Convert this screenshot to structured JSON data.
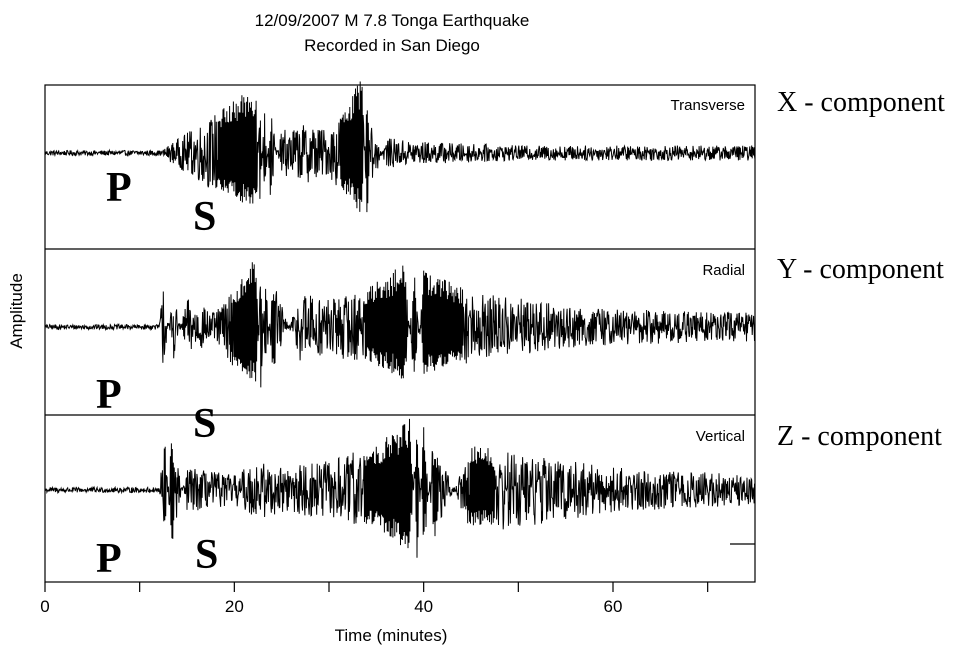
{
  "chart_data": {
    "type": "line",
    "title": "12/09/2007 M 7.8 Tonga Earthquake",
    "subtitle": "Recorded in San Diego",
    "xlabel": "Time (minutes)",
    "ylabel": "Amplitude",
    "xlim": [
      0,
      75
    ],
    "xticks": [
      0,
      10,
      20,
      30,
      40,
      50,
      60,
      70
    ],
    "xtick_labels": [
      "0",
      "",
      "20",
      "",
      "40",
      "",
      "60",
      ""
    ],
    "grid": false,
    "series": [
      {
        "name": "Transverse",
        "component": "X - component",
        "p_label": "P",
        "s_label": "S",
        "x": [
          0,
          12,
          13,
          22.3,
          22.7,
          23.2,
          23.8,
          25,
          28,
          30,
          33.5,
          34.0,
          34.5,
          35,
          36,
          40,
          50,
          60,
          75
        ],
        "y": [
          0,
          0,
          0.1,
          0.9,
          -0.8,
          0.7,
          -0.6,
          0.3,
          0.4,
          0.3,
          1.0,
          -1.0,
          0.6,
          -0.3,
          0.2,
          0.15,
          0.1,
          0.1,
          0.1
        ]
      },
      {
        "name": "Radial",
        "component": "Y - component",
        "p_label": "P",
        "s_label": "S",
        "x": [
          0,
          12,
          12.5,
          13.5,
          15,
          18,
          22.3,
          22.8,
          23.3,
          24,
          27,
          30,
          33,
          36,
          38,
          39,
          40,
          45,
          50,
          55,
          60,
          75
        ],
        "y": [
          0,
          0,
          0.6,
          -0.5,
          0.4,
          0.2,
          1.0,
          -0.9,
          0.8,
          -0.7,
          0.5,
          0.4,
          0.5,
          0.7,
          0.9,
          -0.9,
          0.8,
          0.5,
          0.4,
          0.3,
          0.25,
          0.2
        ]
      },
      {
        "name": "Vertical",
        "component": "Z - component",
        "p_label": "P",
        "s_label": "S",
        "x": [
          0,
          12,
          12.7,
          13.3,
          15,
          20,
          22.5,
          25,
          30,
          35,
          37,
          38.5,
          39.3,
          40,
          41,
          45,
          50,
          55,
          60,
          75
        ],
        "y": [
          0,
          0,
          0.7,
          -0.8,
          0.3,
          0.2,
          0.4,
          0.3,
          0.4,
          0.6,
          0.8,
          1.0,
          -1.0,
          0.9,
          -0.7,
          0.6,
          0.5,
          0.4,
          0.3,
          0.2
        ]
      }
    ]
  }
}
